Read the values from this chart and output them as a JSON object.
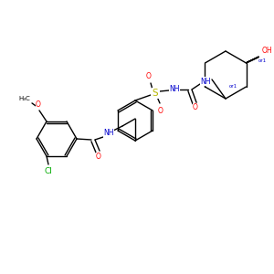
{
  "bg": "#ffffff",
  "bc": "#000000",
  "oc": "#ff0000",
  "nc": "#0000cd",
  "sc": "#b8b800",
  "clc": "#00aa00",
  "lw": 1.0,
  "fs": 5.5,
  "figsize": [
    3.0,
    3.0
  ],
  "dpi": 100,
  "xlim": [
    0,
    300
  ],
  "ylim": [
    0,
    300
  ]
}
